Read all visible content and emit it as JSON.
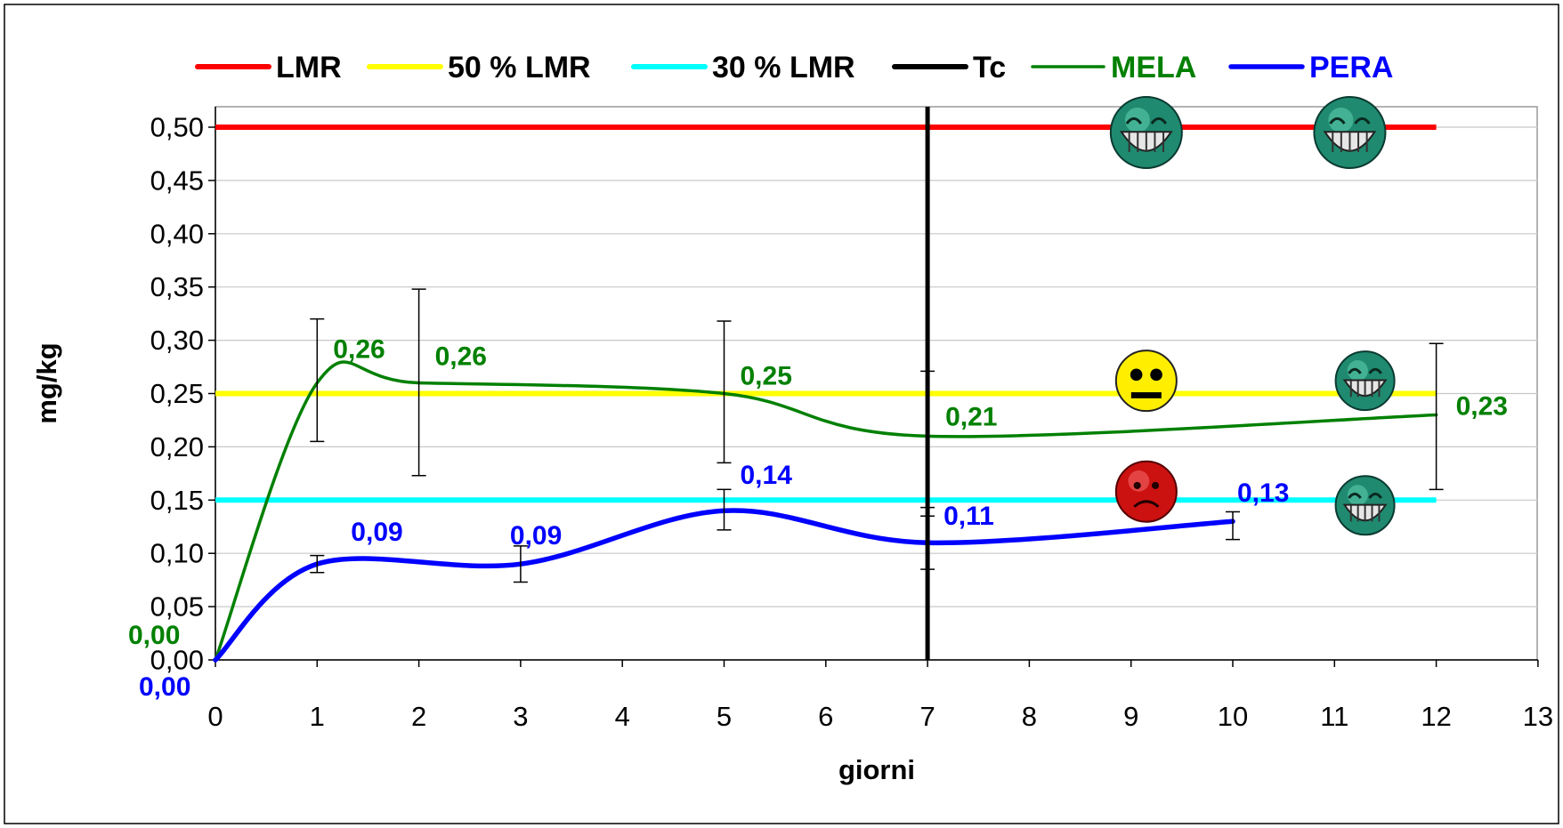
{
  "chart_data": {
    "type": "line",
    "title": "",
    "xlabel": "giorni",
    "ylabel": "mg/kg",
    "xlim": [
      0,
      13
    ],
    "ylim": [
      0,
      0.52
    ],
    "x_ticks": [
      {
        "v": 0,
        "label": "0"
      },
      {
        "v": 1,
        "label": "1"
      },
      {
        "v": 2,
        "label": "2"
      },
      {
        "v": 3,
        "label": "3"
      },
      {
        "v": 4,
        "label": "4"
      },
      {
        "v": 5,
        "label": "5"
      },
      {
        "v": 6,
        "label": "6"
      },
      {
        "v": 7,
        "label": "7"
      },
      {
        "v": 8,
        "label": "8"
      },
      {
        "v": 9,
        "label": "9"
      },
      {
        "v": 10,
        "label": "10"
      },
      {
        "v": 11,
        "label": "11"
      },
      {
        "v": 12,
        "label": "12"
      },
      {
        "v": 13,
        "label": "13"
      }
    ],
    "y_ticks": [
      {
        "v": 0.0,
        "label": "0,00"
      },
      {
        "v": 0.05,
        "label": "0,05"
      },
      {
        "v": 0.1,
        "label": "0,10"
      },
      {
        "v": 0.15,
        "label": "0,15"
      },
      {
        "v": 0.2,
        "label": "0,20"
      },
      {
        "v": 0.25,
        "label": "0,25"
      },
      {
        "v": 0.3,
        "label": "0,30"
      },
      {
        "v": 0.35,
        "label": "0,35"
      },
      {
        "v": 0.4,
        "label": "0,40"
      },
      {
        "v": 0.45,
        "label": "0,45"
      },
      {
        "v": 0.5,
        "label": "0,50"
      }
    ],
    "grid": true,
    "legend_position": "top",
    "reference_lines": [
      {
        "name": "LMR",
        "y": 0.5,
        "x_range": [
          0,
          12
        ],
        "color": "#ff0000"
      },
      {
        "name": "50 % LMR",
        "y": 0.25,
        "x_range": [
          0,
          12
        ],
        "color": "#ffff00"
      },
      {
        "name": "30 % LMR",
        "y": 0.15,
        "x_range": [
          0,
          12
        ],
        "color": "#00ffff"
      }
    ],
    "vertical_lines": [
      {
        "name": "Tc",
        "x": 7,
        "color": "#000000"
      }
    ],
    "series": [
      {
        "name": "MELA",
        "color": "#008000",
        "points": [
          {
            "x": 0,
            "y": 0.0,
            "label": "0,00",
            "err": null
          },
          {
            "x": 1,
            "y": 0.26,
            "label": "0,26",
            "err": [
              0.205,
              0.32
            ]
          },
          {
            "x": 2,
            "y": 0.26,
            "label": "0,26",
            "err": [
              0.173,
              0.348
            ]
          },
          {
            "x": 5,
            "y": 0.25,
            "label": "0,25",
            "err": [
              0.185,
              0.318
            ]
          },
          {
            "x": 7,
            "y": 0.21,
            "label": "0,21",
            "err": [
              0.135,
              0.271
            ]
          },
          {
            "x": 12,
            "y": 0.23,
            "label": "0,23",
            "err": [
              0.16,
              0.297
            ]
          }
        ]
      },
      {
        "name": "PERA",
        "color": "#0000ff",
        "points": [
          {
            "x": 0,
            "y": 0.0,
            "label": "0,00",
            "err": null
          },
          {
            "x": 1,
            "y": 0.09,
            "label": "0,09",
            "err": [
              0.082,
              0.098
            ]
          },
          {
            "x": 3,
            "y": 0.09,
            "label": "0,09",
            "err": [
              0.073,
              0.107
            ]
          },
          {
            "x": 5,
            "y": 0.14,
            "label": "0,14",
            "err": [
              0.122,
              0.16
            ]
          },
          {
            "x": 7,
            "y": 0.11,
            "label": "0,11",
            "err": [
              0.085,
              0.143
            ]
          },
          {
            "x": 10,
            "y": 0.13,
            "label": "0,13",
            "err": [
              0.113,
              0.139
            ]
          }
        ]
      }
    ],
    "annotations": [
      {
        "icon": "grinning-face-icon",
        "x": 9.15,
        "y": 0.495,
        "color": "#1f8a70"
      },
      {
        "icon": "grinning-face-icon",
        "x": 11.15,
        "y": 0.495,
        "color": "#1f8a70"
      },
      {
        "icon": "neutral-face-icon",
        "x": 9.15,
        "y": 0.262,
        "color": "#ffee00"
      },
      {
        "icon": "grinning-face-icon",
        "x": 11.3,
        "y": 0.262,
        "color": "#1f8a70"
      },
      {
        "icon": "sad-face-icon",
        "x": 9.15,
        "y": 0.158,
        "color": "#cc1111"
      },
      {
        "icon": "grinning-face-icon",
        "x": 11.3,
        "y": 0.145,
        "color": "#1f8a70"
      }
    ]
  }
}
